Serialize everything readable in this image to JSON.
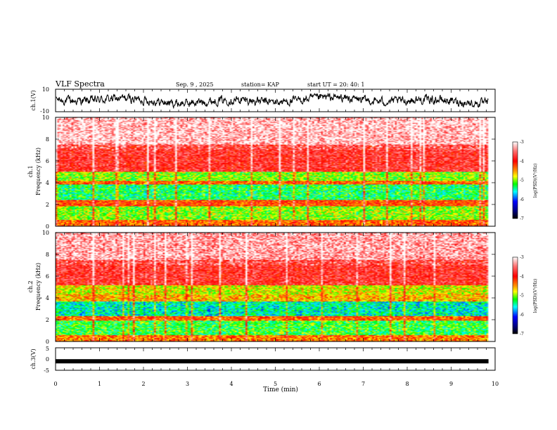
{
  "header": {
    "title": "VLF Spectra",
    "date": "Sep. 9 , 2025",
    "station": "station= KAP",
    "start": "start  UT =   20: 40: 1"
  },
  "chart_data": [
    {
      "type": "line",
      "panel": "ch1-waveform",
      "ylabel": "ch.1(V)",
      "xlim": [
        0,
        10
      ],
      "ylim": [
        -10,
        10
      ],
      "yticks": [
        "10",
        "-10"
      ],
      "data_end_min": 9.85,
      "description_series": "noisy voltage waveform ranging roughly -6 to 5 V"
    },
    {
      "type": "heatmap",
      "panel": "ch1-spectrogram",
      "ylabel": "ch.1\nFrequency (kHz)",
      "xlim": [
        0,
        10
      ],
      "ylim": [
        0,
        10
      ],
      "yticks": [
        "0",
        "2",
        "4",
        "6",
        "8",
        "10"
      ],
      "data_end_min": 9.85,
      "colorbar": {
        "label": "log(PSD)(V²/Hz)",
        "range": [
          -7,
          -3
        ],
        "ticks": [
          "-3",
          "-4",
          "-5",
          "-6",
          "-7"
        ]
      },
      "bands_kHz": [
        {
          "from": 0.0,
          "to": 0.6,
          "value": -4.3
        },
        {
          "from": 0.6,
          "to": 1.8,
          "value": -5.0
        },
        {
          "from": 1.8,
          "to": 2.4,
          "value": -4.2
        },
        {
          "from": 2.4,
          "to": 3.8,
          "value": -5.3
        },
        {
          "from": 3.8,
          "to": 4.2,
          "value": -4.3
        },
        {
          "from": 4.2,
          "to": 5.0,
          "value": -5.0
        },
        {
          "from": 5.0,
          "to": 7.5,
          "value": -3.8
        },
        {
          "from": 7.5,
          "to": 10.0,
          "value": -3.3
        }
      ]
    },
    {
      "type": "heatmap",
      "panel": "ch2-spectrogram",
      "ylabel": "ch.2\nFrequency (kHz)",
      "xlim": [
        0,
        10
      ],
      "ylim": [
        0,
        10
      ],
      "yticks": [
        "0",
        "2",
        "4",
        "6",
        "8",
        "10"
      ],
      "data_end_min": 9.85,
      "colorbar": {
        "label": "log(PSD)(V²/Hz)",
        "range": [
          -7,
          -3
        ],
        "ticks": [
          "-3",
          "-4",
          "-5",
          "-6",
          "-7"
        ]
      },
      "bands_kHz": [
        {
          "from": 0.0,
          "to": 0.6,
          "value": -4.4
        },
        {
          "from": 0.6,
          "to": 1.9,
          "value": -5.2
        },
        {
          "from": 1.9,
          "to": 2.3,
          "value": -4.3
        },
        {
          "from": 2.3,
          "to": 3.7,
          "value": -5.5
        },
        {
          "from": 3.7,
          "to": 4.3,
          "value": -4.6
        },
        {
          "from": 4.3,
          "to": 5.2,
          "value": -4.8
        },
        {
          "from": 5.2,
          "to": 7.5,
          "value": -3.8
        },
        {
          "from": 7.5,
          "to": 10.0,
          "value": -3.4
        }
      ]
    },
    {
      "type": "line",
      "panel": "ch3-waveform",
      "ylabel": "ch.3(V)",
      "xlabel": "Time  (min)",
      "xlim": [
        0,
        10
      ],
      "ylim": [
        -5,
        5
      ],
      "yticks": [
        "5",
        "0",
        "-5"
      ],
      "xticks": [
        "0",
        "1",
        "2",
        "3",
        "4",
        "5",
        "6",
        "7",
        "8",
        "9",
        "10"
      ],
      "data_end_min": 9.85,
      "level_V": -1.0
    }
  ]
}
